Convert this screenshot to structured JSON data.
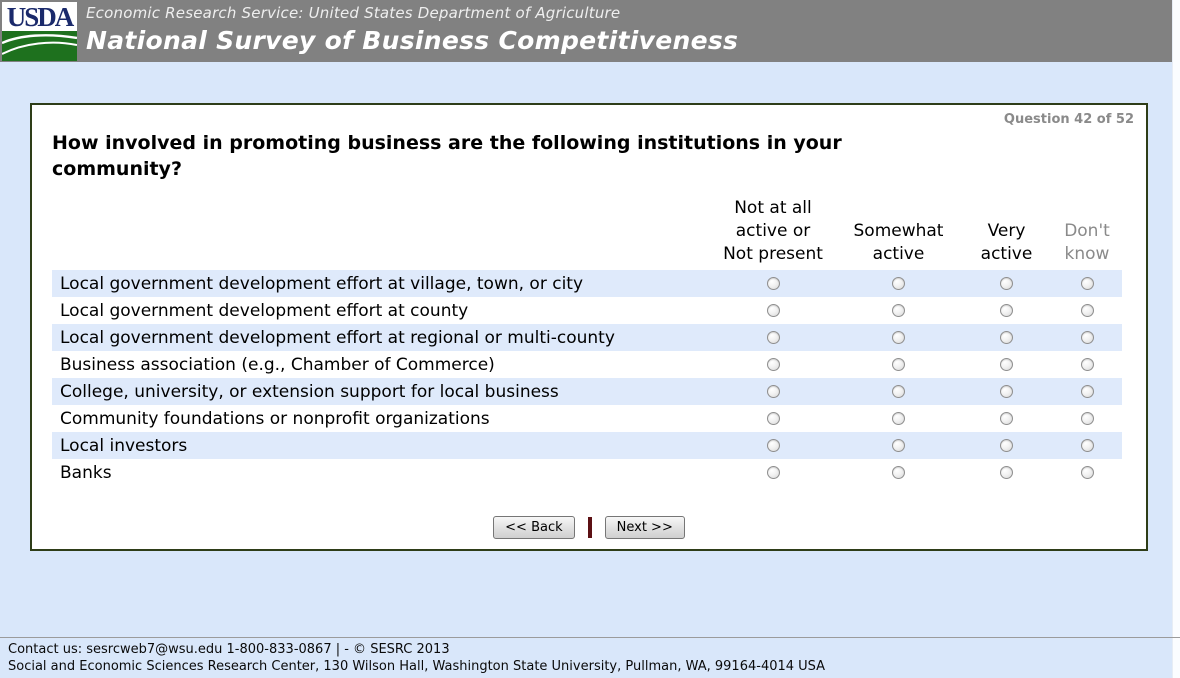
{
  "colors": {
    "banner_bg": "#818181",
    "page_bg": "#d9e7fa",
    "row_stripe": "#dfeafb",
    "panel_border": "#2e3d18",
    "button_separator": "#5c1014",
    "muted_text": "#8a8a8a",
    "logo_navy": "#1b2a6b",
    "logo_green": "#1e711e"
  },
  "header": {
    "logo_text": "USDA",
    "agency_line": "Economic Research Service: United States Department of Agriculture",
    "survey_title": "National Survey of Business Competitiveness"
  },
  "question_panel": {
    "progress": "Question 42 of 52",
    "question": "How involved in promoting business are the following institutions in your\ncommunity?",
    "columns": [
      "Not at all\nactive or\nNot present",
      "Somewhat\nactive",
      "Very\nactive",
      "Don't\nknow"
    ],
    "rows": [
      "Local government development effort at village, town, or city",
      "Local government development effort at county",
      "Local government development effort at regional or multi-county",
      "Business association (e.g., Chamber of Commerce)",
      "College, university, or extension support for local business",
      "Community foundations or nonprofit organizations",
      "Local investors",
      "Banks"
    ],
    "selections": [
      null,
      null,
      null,
      null,
      null,
      null,
      null,
      null
    ],
    "buttons": {
      "back": "<< Back",
      "next": "Next >>"
    }
  },
  "footer": {
    "line1": "Contact us: sesrcweb7@wsu.edu 1-800-833-0867 | - © SESRC 2013",
    "line2": "Social and Economic Sciences Research Center, 130 Wilson Hall, Washington State University, Pullman, WA, 99164-4014 USA"
  }
}
